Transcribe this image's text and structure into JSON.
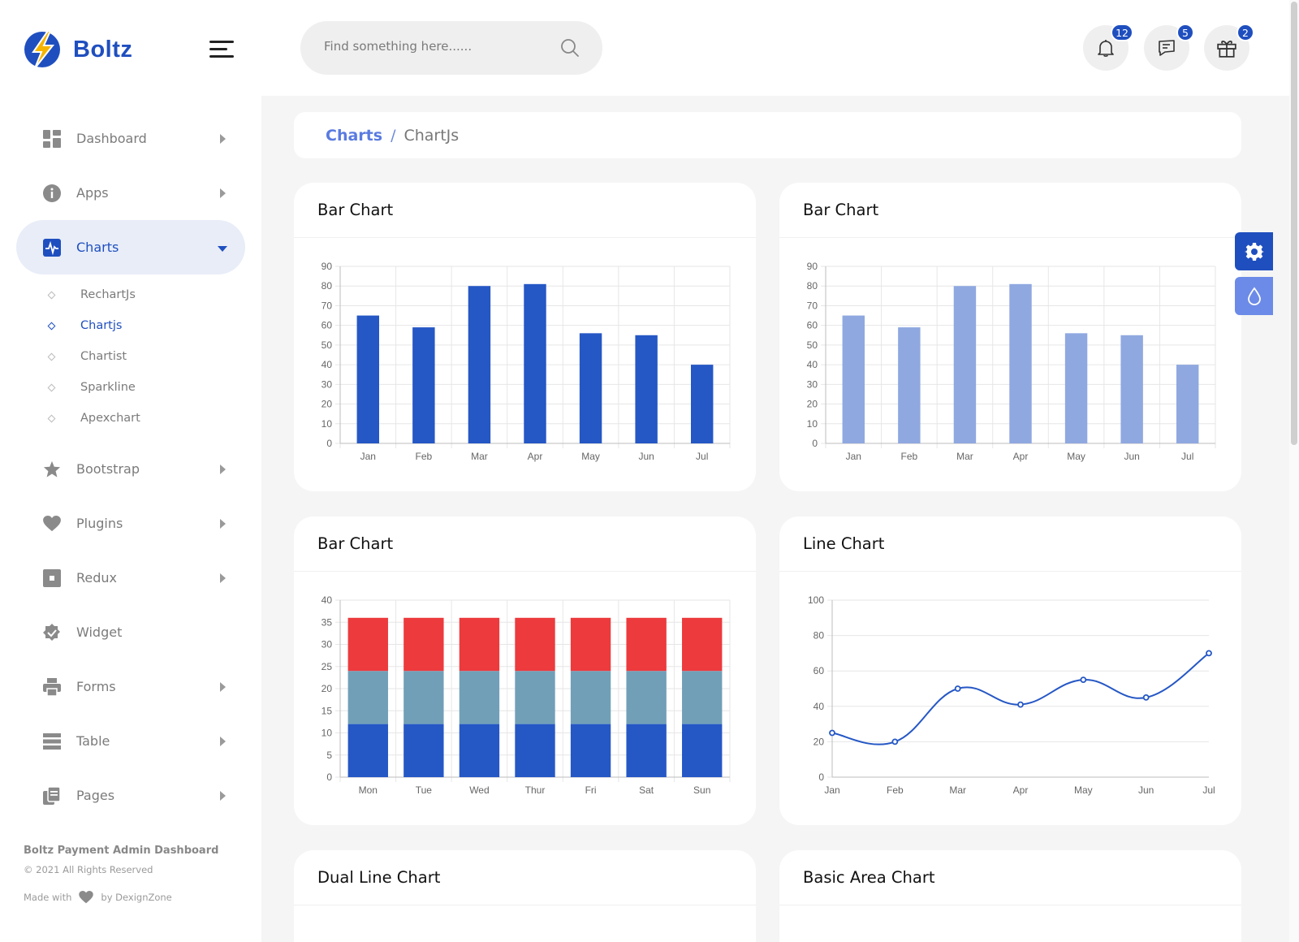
{
  "app": {
    "name": "Boltz"
  },
  "search": {
    "placeholder": "Find something here......"
  },
  "header": {
    "notifications": {
      "count": "12"
    },
    "messages": {
      "count": "5"
    },
    "gifts": {
      "count": "2"
    }
  },
  "sidebar": {
    "items": [
      {
        "label": "Dashboard",
        "icon": "grid-icon"
      },
      {
        "label": "Apps",
        "icon": "info-icon"
      },
      {
        "label": "Charts",
        "icon": "chart-pulse-icon",
        "active": true
      },
      {
        "label": "Bootstrap",
        "icon": "star-icon"
      },
      {
        "label": "Plugins",
        "icon": "heart-icon"
      },
      {
        "label": "Redux",
        "icon": "square-icon"
      },
      {
        "label": "Widget",
        "icon": "badge-check-icon"
      },
      {
        "label": "Forms",
        "icon": "printer-icon"
      },
      {
        "label": "Table",
        "icon": "list-icon"
      },
      {
        "label": "Pages",
        "icon": "copy-icon"
      }
    ],
    "charts_submenu": [
      "RechartJs",
      "Chartjs",
      "Chartist",
      "Sparkline",
      "Apexchart"
    ],
    "footer": {
      "title": "Boltz Payment Admin Dashboard",
      "copyright": "© 2021 All Rights Reserved",
      "made_with": "Made with",
      "by": "by DexignZone"
    }
  },
  "breadcrumb": {
    "parent": "Charts",
    "separator": "/",
    "current": "ChartJs"
  },
  "cards": {
    "bar1": "Bar Chart",
    "bar2": "Bar Chart",
    "bar3": "Bar Chart",
    "line": "Line Chart",
    "dual": "Dual Line Chart",
    "area": "Basic Area Chart"
  },
  "colors": {
    "primary": "#1f4fbf",
    "bar_dark": "#2557c5",
    "bar_light": "#8fa8e0",
    "stack_red": "#ec3a3d",
    "stack_teal": "#719fb8",
    "stack_blue": "#2557c5"
  },
  "chart_data": [
    {
      "id": "bar1",
      "type": "bar",
      "categories": [
        "Jan",
        "Feb",
        "Mar",
        "Apr",
        "May",
        "Jun",
        "Jul"
      ],
      "values": [
        65,
        59,
        80,
        81,
        56,
        55,
        40
      ],
      "ylim": [
        0,
        90
      ],
      "ticks": [
        0,
        10,
        20,
        30,
        40,
        50,
        60,
        70,
        80,
        90
      ],
      "color": "#2557c5",
      "grid": true
    },
    {
      "id": "bar2",
      "type": "bar",
      "categories": [
        "Jan",
        "Feb",
        "Mar",
        "Apr",
        "May",
        "Jun",
        "Jul"
      ],
      "values": [
        65,
        59,
        80,
        81,
        56,
        55,
        40
      ],
      "ylim": [
        0,
        90
      ],
      "ticks": [
        0,
        10,
        20,
        30,
        40,
        50,
        60,
        70,
        80,
        90
      ],
      "color": "#8fa8e0",
      "grid": true
    },
    {
      "id": "bar3",
      "type": "bar",
      "stacked": true,
      "categories": [
        "Mon",
        "Tue",
        "Wed",
        "Thur",
        "Fri",
        "Sat",
        "Sun"
      ],
      "series": [
        {
          "values": [
            12,
            12,
            12,
            12,
            12,
            12,
            12
          ],
          "color": "#2557c5"
        },
        {
          "values": [
            12,
            12,
            12,
            12,
            12,
            12,
            12
          ],
          "color": "#719fb8"
        },
        {
          "values": [
            12,
            12,
            12,
            12,
            12,
            12,
            12
          ],
          "color": "#ec3a3d"
        }
      ],
      "ylim": [
        0,
        40
      ],
      "ticks": [
        0,
        5,
        10,
        15,
        20,
        25,
        30,
        35,
        40
      ],
      "grid": true
    },
    {
      "id": "line",
      "type": "line",
      "categories": [
        "Jan",
        "Feb",
        "Mar",
        "Apr",
        "May",
        "Jun",
        "Jul"
      ],
      "values": [
        25,
        20,
        50,
        41,
        55,
        45,
        70
      ],
      "ylim": [
        0,
        100
      ],
      "ticks": [
        0,
        20,
        40,
        60,
        80,
        100
      ],
      "color": "#2557c5",
      "grid": true
    }
  ]
}
